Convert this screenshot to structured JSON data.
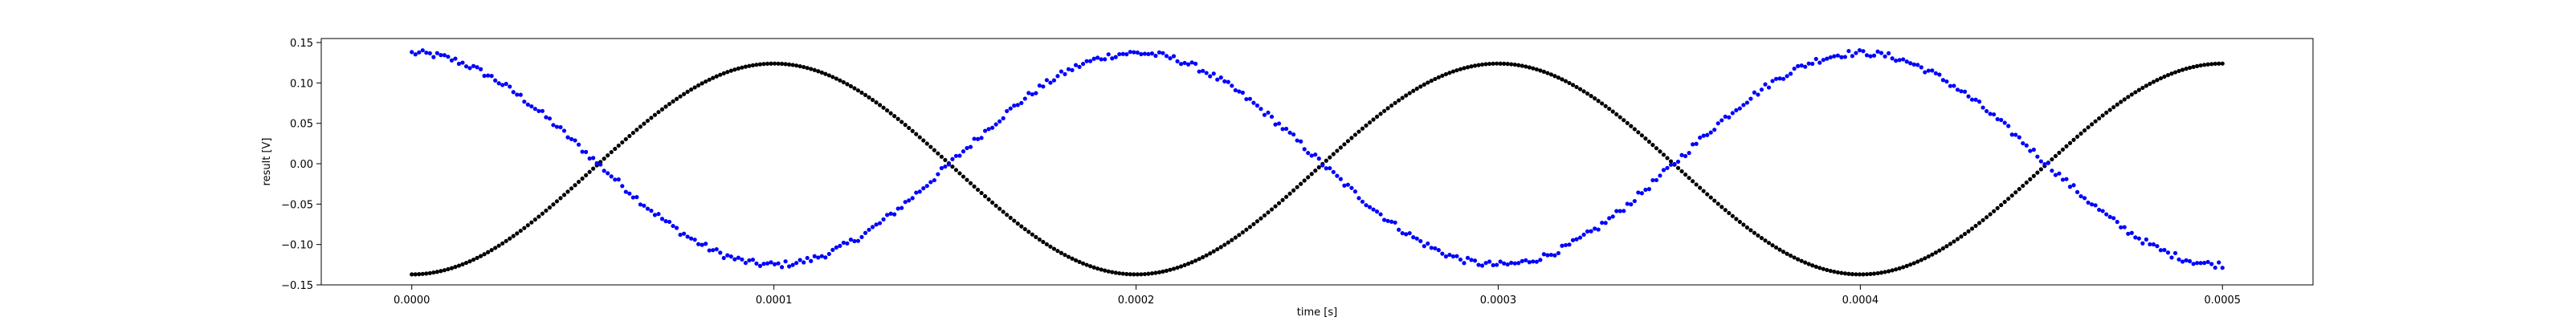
{
  "chart_data": {
    "type": "scatter",
    "title": "",
    "xlabel": "time [s]",
    "ylabel": "result [V]",
    "xlim": [
      -2.5e-05,
      0.000525
    ],
    "ylim": [
      -0.15,
      0.155
    ],
    "grid": false,
    "legend": "none",
    "x_ticks": [
      0.0,
      0.0001,
      0.0002,
      0.0003,
      0.0004,
      0.0005
    ],
    "x_tick_labels": [
      "0.0000",
      "0.0001",
      "0.0002",
      "0.0003",
      "0.0004",
      "0.0005"
    ],
    "y_ticks": [
      -0.15,
      -0.1,
      -0.05,
      0.0,
      0.05,
      0.1,
      0.15
    ],
    "y_tick_labels": [
      "−0.15",
      "−0.10",
      "−0.05",
      "0.00",
      "0.05",
      "0.10",
      "0.15"
    ],
    "series": [
      {
        "color": "#000000",
        "x_range": [
          0.0,
          0.0005
        ],
        "waveform": "sine",
        "amplitude": 0.1305,
        "offset": -0.0065,
        "period": 0.0002,
        "phase": "negative-cosine",
        "sample_count": 500,
        "noise": 0.0
      },
      {
        "color": "#0000ff",
        "x_range": [
          0.0,
          0.0005
        ],
        "waveform": "sine",
        "amplitude": 0.131,
        "offset": 0.006,
        "period": 0.0002,
        "phase": "cosine",
        "sample_count": 500,
        "noise": 0.004
      }
    ]
  }
}
